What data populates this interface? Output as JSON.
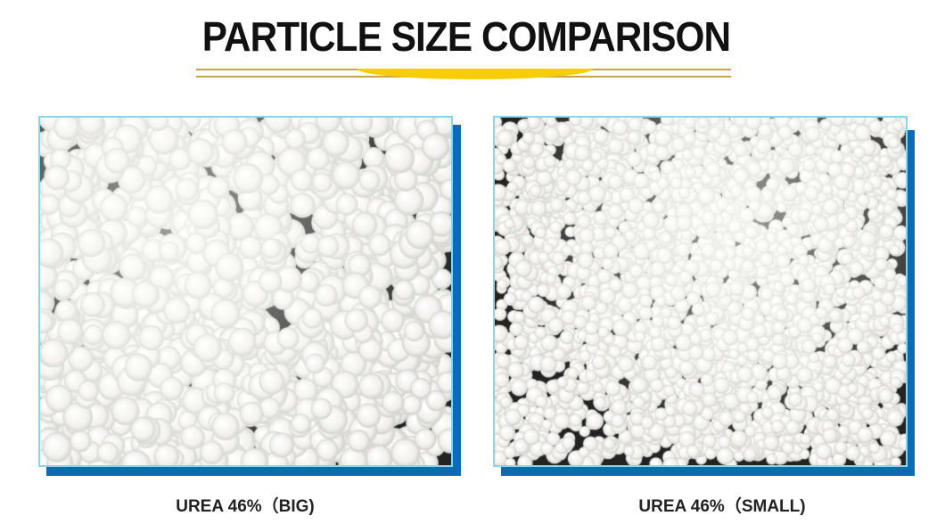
{
  "header": {
    "title": "PARTICLE SIZE COMPARISON"
  },
  "colors": {
    "accent_yellow": "#f7cd0a",
    "frame_border": "#86d7ec",
    "frame_shadow": "#0c6bb4",
    "rule_gold": "#c9a24a"
  },
  "panels": [
    {
      "label": "UREA 46%（BIG)",
      "image": "large white urea granules"
    },
    {
      "label": "UREA 46%（SMALL)",
      "image": "small white urea granules"
    }
  ]
}
